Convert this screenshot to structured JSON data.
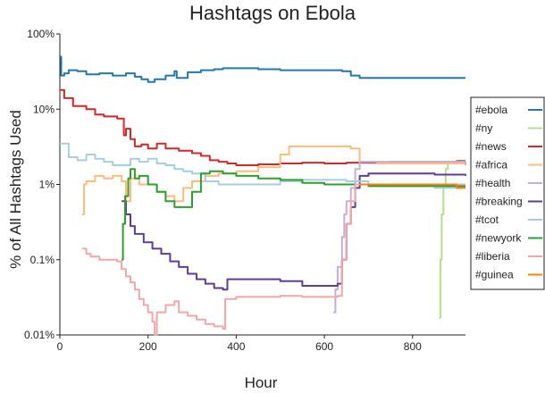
{
  "chart_data": {
    "type": "line",
    "title": "Hashtags on Ebola",
    "xlabel": "Hour",
    "ylabel": "% of All Hashtags Used",
    "yscale": "log",
    "xlim": [
      0,
      920
    ],
    "ylim": [
      0.01,
      100
    ],
    "x_ticks": [
      0,
      200,
      400,
      600,
      800
    ],
    "y_ticks": [
      {
        "value": 0.01,
        "label": "0.01%"
      },
      {
        "value": 0.1,
        "label": "0.1%"
      },
      {
        "value": 1,
        "label": "1%"
      },
      {
        "value": 10,
        "label": "10%"
      },
      {
        "value": 100,
        "label": "100%"
      }
    ],
    "legend_position": "right",
    "series": [
      {
        "name": "#ebola",
        "color": "#1f77b4",
        "points": [
          [
            0,
            50
          ],
          [
            3,
            28
          ],
          [
            10,
            30
          ],
          [
            20,
            33
          ],
          [
            40,
            32
          ],
          [
            60,
            29
          ],
          [
            90,
            30
          ],
          [
            120,
            28
          ],
          [
            150,
            30
          ],
          [
            170,
            27
          ],
          [
            185,
            25
          ],
          [
            200,
            23
          ],
          [
            215,
            25
          ],
          [
            240,
            28
          ],
          [
            260,
            32
          ],
          [
            265,
            26
          ],
          [
            290,
            31
          ],
          [
            320,
            33
          ],
          [
            350,
            34
          ],
          [
            370,
            35
          ],
          [
            400,
            35
          ],
          [
            450,
            34
          ],
          [
            500,
            33
          ],
          [
            550,
            33
          ],
          [
            600,
            33
          ],
          [
            640,
            32
          ],
          [
            660,
            28
          ],
          [
            680,
            26
          ],
          [
            750,
            26
          ],
          [
            800,
            26
          ],
          [
            850,
            26
          ],
          [
            920,
            26
          ]
        ]
      },
      {
        "name": "#ny",
        "color": "#b5e08b",
        "points": [
          [
            860,
            0.017
          ],
          [
            863,
            0.1
          ],
          [
            866,
            0.4
          ],
          [
            870,
            1.0
          ],
          [
            875,
            1.6
          ],
          [
            880,
            1.9
          ],
          [
            900,
            1.9
          ],
          [
            920,
            1.9
          ]
        ]
      },
      {
        "name": "#news",
        "color": "#d62728",
        "points": [
          [
            0,
            18
          ],
          [
            10,
            14
          ],
          [
            30,
            11
          ],
          [
            60,
            10
          ],
          [
            80,
            8.5
          ],
          [
            100,
            8
          ],
          [
            130,
            7.5
          ],
          [
            145,
            4.5
          ],
          [
            150,
            5.5
          ],
          [
            160,
            4
          ],
          [
            170,
            3.2
          ],
          [
            185,
            3.4
          ],
          [
            200,
            3
          ],
          [
            220,
            3.5
          ],
          [
            240,
            3.0
          ],
          [
            270,
            2.8
          ],
          [
            300,
            2.6
          ],
          [
            320,
            2.4
          ],
          [
            340,
            2.1
          ],
          [
            360,
            2.0
          ],
          [
            380,
            1.9
          ],
          [
            400,
            1.8
          ],
          [
            450,
            1.85
          ],
          [
            500,
            1.9
          ],
          [
            550,
            1.95
          ],
          [
            600,
            1.9
          ],
          [
            650,
            1.95
          ],
          [
            700,
            1.95
          ],
          [
            750,
            2.0
          ],
          [
            800,
            2.0
          ],
          [
            850,
            2.0
          ],
          [
            900,
            2.05
          ],
          [
            920,
            2.05
          ]
        ]
      },
      {
        "name": "#africa",
        "color": "#ffbb78",
        "points": [
          [
            50,
            0.4
          ],
          [
            55,
            1.0
          ],
          [
            60,
            1.1
          ],
          [
            80,
            1.3
          ],
          [
            100,
            1.2
          ],
          [
            120,
            1.3
          ],
          [
            140,
            1.1
          ],
          [
            150,
            0.6
          ],
          [
            160,
            1.2
          ],
          [
            180,
            1.0
          ],
          [
            200,
            1.0
          ],
          [
            220,
            0.8
          ],
          [
            240,
            0.7
          ],
          [
            260,
            0.6
          ],
          [
            280,
            0.9
          ],
          [
            300,
            1.1
          ],
          [
            330,
            1.3
          ],
          [
            360,
            1.4
          ],
          [
            400,
            1.5
          ],
          [
            450,
            1.7
          ],
          [
            500,
            2.5
          ],
          [
            520,
            3.2
          ],
          [
            560,
            3.2
          ],
          [
            600,
            3.2
          ],
          [
            640,
            3.2
          ],
          [
            660,
            3.0
          ],
          [
            680,
            2.0
          ],
          [
            720,
            1.9
          ],
          [
            760,
            1.9
          ],
          [
            800,
            1.9
          ],
          [
            850,
            1.9
          ],
          [
            900,
            1.9
          ],
          [
            920,
            1.9
          ]
        ]
      },
      {
        "name": "#health",
        "color": "#c5b0d5",
        "points": [
          [
            620,
            0.02
          ],
          [
            625,
            0.04
          ],
          [
            630,
            0.08
          ],
          [
            640,
            0.2
          ],
          [
            645,
            0.4
          ],
          [
            650,
            0.6
          ],
          [
            660,
            0.9
          ],
          [
            670,
            1.6
          ],
          [
            680,
            2.0
          ],
          [
            700,
            2.0
          ],
          [
            800,
            2.0
          ],
          [
            850,
            2.0
          ],
          [
            920,
            1.8
          ]
        ]
      },
      {
        "name": "#breaking",
        "color": "#5e3c99",
        "points": [
          [
            140,
            0.6
          ],
          [
            150,
            0.4
          ],
          [
            160,
            0.28
          ],
          [
            170,
            0.22
          ],
          [
            190,
            0.17
          ],
          [
            210,
            0.14
          ],
          [
            230,
            0.12
          ],
          [
            250,
            0.095
          ],
          [
            270,
            0.08
          ],
          [
            290,
            0.065
          ],
          [
            310,
            0.055
          ],
          [
            330,
            0.048
          ],
          [
            350,
            0.042
          ],
          [
            370,
            0.04
          ],
          [
            380,
            0.055
          ],
          [
            420,
            0.055
          ],
          [
            500,
            0.052
          ],
          [
            550,
            0.045
          ],
          [
            600,
            0.045
          ],
          [
            630,
            0.048
          ],
          [
            640,
            0.1
          ],
          [
            650,
            0.3
          ],
          [
            660,
            0.5
          ],
          [
            670,
            0.9
          ],
          [
            680,
            1.3
          ],
          [
            700,
            1.4
          ],
          [
            800,
            1.4
          ],
          [
            850,
            1.35
          ],
          [
            900,
            1.35
          ],
          [
            920,
            1.3
          ]
        ]
      },
      {
        "name": "#tcot",
        "color": "#a6cee3",
        "points": [
          [
            0,
            3.5
          ],
          [
            20,
            2.3
          ],
          [
            40,
            2.1
          ],
          [
            60,
            2.5
          ],
          [
            80,
            2.2
          ],
          [
            100,
            2.0
          ],
          [
            120,
            1.8
          ],
          [
            140,
            1.8
          ],
          [
            160,
            2.2
          ],
          [
            180,
            2.0
          ],
          [
            200,
            2.2
          ],
          [
            220,
            1.9
          ],
          [
            240,
            1.8
          ],
          [
            260,
            1.6
          ],
          [
            280,
            1.5
          ],
          [
            300,
            1.4
          ],
          [
            330,
            1.1
          ],
          [
            360,
            1.0
          ],
          [
            400,
            1.0
          ],
          [
            450,
            1.0
          ],
          [
            500,
            1.1
          ],
          [
            550,
            1.15
          ],
          [
            600,
            1.15
          ],
          [
            650,
            1.1
          ],
          [
            700,
            1.0
          ],
          [
            750,
            1.0
          ],
          [
            800,
            1.0
          ],
          [
            850,
            0.9
          ],
          [
            900,
            0.9
          ],
          [
            920,
            0.9
          ]
        ]
      },
      {
        "name": "#newyork",
        "color": "#2ca02c",
        "points": [
          [
            140,
            0.1
          ],
          [
            143,
            0.3
          ],
          [
            148,
            0.7
          ],
          [
            155,
            1.2
          ],
          [
            160,
            1.6
          ],
          [
            170,
            1.2
          ],
          [
            180,
            1.3
          ],
          [
            200,
            1.0
          ],
          [
            220,
            0.8
          ],
          [
            240,
            0.6
          ],
          [
            260,
            0.5
          ],
          [
            280,
            0.5
          ],
          [
            300,
            0.8
          ],
          [
            320,
            1.4
          ],
          [
            340,
            1.5
          ],
          [
            370,
            1.4
          ],
          [
            400,
            1.3
          ],
          [
            450,
            1.2
          ],
          [
            500,
            1.15
          ],
          [
            550,
            1.05
          ],
          [
            600,
            1.0
          ],
          [
            650,
            1.0
          ],
          [
            700,
            0.95
          ],
          [
            750,
            0.95
          ],
          [
            800,
            0.95
          ],
          [
            850,
            0.95
          ],
          [
            900,
            0.95
          ],
          [
            920,
            0.95
          ]
        ]
      },
      {
        "name": "#liberia",
        "color": "#f4a6a6",
        "points": [
          [
            50,
            0.14
          ],
          [
            60,
            0.12
          ],
          [
            70,
            0.11
          ],
          [
            90,
            0.1
          ],
          [
            110,
            0.1
          ],
          [
            130,
            0.095
          ],
          [
            140,
            0.075
          ],
          [
            150,
            0.06
          ],
          [
            160,
            0.05
          ],
          [
            170,
            0.04
          ],
          [
            180,
            0.03
          ],
          [
            190,
            0.025
          ],
          [
            200,
            0.02
          ],
          [
            210,
            0.015
          ],
          [
            215,
            0.01
          ],
          [
            220,
            0.02
          ],
          [
            240,
            0.025
          ],
          [
            260,
            0.028
          ],
          [
            270,
            0.02
          ],
          [
            290,
            0.018
          ],
          [
            310,
            0.016
          ],
          [
            330,
            0.014
          ],
          [
            350,
            0.013
          ],
          [
            370,
            0.012
          ],
          [
            375,
            0.03
          ],
          [
            400,
            0.032
          ],
          [
            450,
            0.032
          ],
          [
            500,
            0.033
          ],
          [
            550,
            0.032
          ],
          [
            600,
            0.032
          ],
          [
            630,
            0.033
          ],
          [
            640,
            0.1
          ],
          [
            650,
            0.3
          ],
          [
            660,
            0.6
          ],
          [
            670,
            1.0
          ],
          [
            680,
            1.0
          ],
          [
            700,
            1.0
          ],
          [
            800,
            1.0
          ],
          [
            900,
            1.0
          ],
          [
            920,
            1.0
          ]
        ]
      },
      {
        "name": "#guinea",
        "color": "#ff7f0e",
        "points": [
          [
            680,
            1.0
          ],
          [
            700,
            1.0
          ],
          [
            750,
            1.0
          ],
          [
            800,
            1.0
          ],
          [
            850,
            1.0
          ],
          [
            880,
            1.0
          ],
          [
            900,
            0.9
          ],
          [
            920,
            0.9
          ]
        ]
      }
    ]
  }
}
